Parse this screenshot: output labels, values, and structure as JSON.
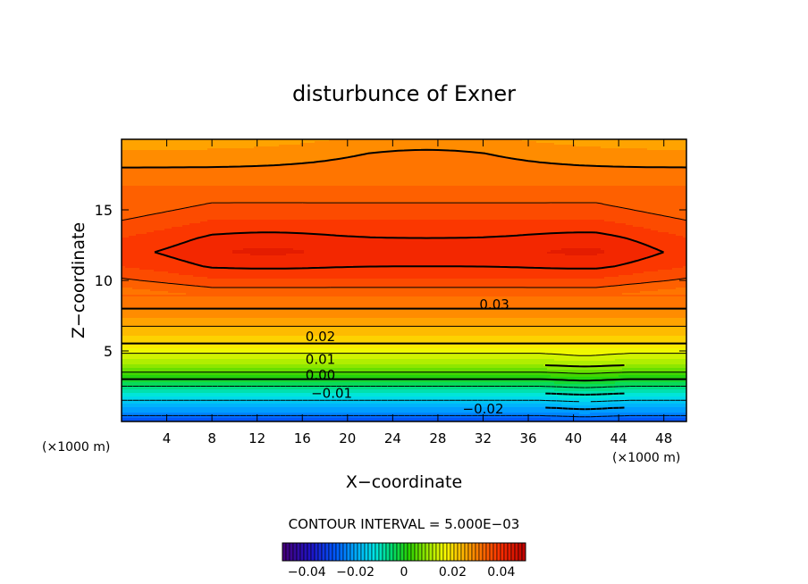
{
  "chart_data": {
    "type": "heatmap",
    "subtype": "filled-contour",
    "title": "disturbunce of Exner",
    "xlabel": "X−coordinate",
    "ylabel": "Z−coordinate",
    "x_unit": "(×1000 m)",
    "z_unit": "(×1000 m)",
    "xlim": [
      0,
      50
    ],
    "ylim": [
      0,
      20
    ],
    "x_ticks": [
      4,
      8,
      12,
      16,
      20,
      24,
      28,
      32,
      36,
      40,
      44,
      48
    ],
    "y_ticks": [
      5,
      10,
      15
    ],
    "contour_interval_text": "CONTOUR INTERVAL = 5.000E−03",
    "contour_labels": [
      {
        "text": "0.03",
        "x": 33,
        "z": 8.3
      },
      {
        "text": "0.02",
        "x": 17.6,
        "z": 6.0
      },
      {
        "text": "0.01",
        "x": 17.6,
        "z": 4.4
      },
      {
        "text": "0.00",
        "x": 17.6,
        "z": 3.3
      },
      {
        "text": "−0.01",
        "x": 18.6,
        "z": 2.0
      },
      {
        "text": "−0.02",
        "x": 32,
        "z": 0.9
      }
    ],
    "colorbar": {
      "min": -0.05,
      "max": 0.05,
      "ticks": [
        -0.04,
        -0.02,
        0,
        0.02,
        0.04
      ],
      "tick_labels": [
        "−0.04",
        "−0.02",
        "0",
        "0.02",
        "0.04"
      ]
    },
    "field": {
      "profile_z": [
        0,
        0.5,
        1,
        1.5,
        2,
        2.5,
        3,
        3.5,
        4,
        4.5,
        5,
        5.5,
        6,
        6.5,
        7,
        7.5,
        8,
        8.5,
        9,
        10,
        11,
        12,
        13,
        14,
        15,
        16,
        17,
        18,
        19,
        20
      ],
      "profile_value": [
        -0.03,
        -0.024,
        -0.02,
        -0.015,
        -0.01,
        -0.005,
        0.0,
        0.005,
        0.01,
        0.013,
        0.016,
        0.02,
        0.022,
        0.024,
        0.026,
        0.028,
        0.03,
        0.0315,
        0.033,
        0.037,
        0.04,
        0.0415,
        0.04,
        0.038,
        0.036,
        0.034,
        0.032,
        0.03,
        0.028,
        0.026
      ],
      "max_value": 0.0425,
      "max_near_x": [
        13,
        41
      ],
      "max_near_z": 12.3
    }
  }
}
